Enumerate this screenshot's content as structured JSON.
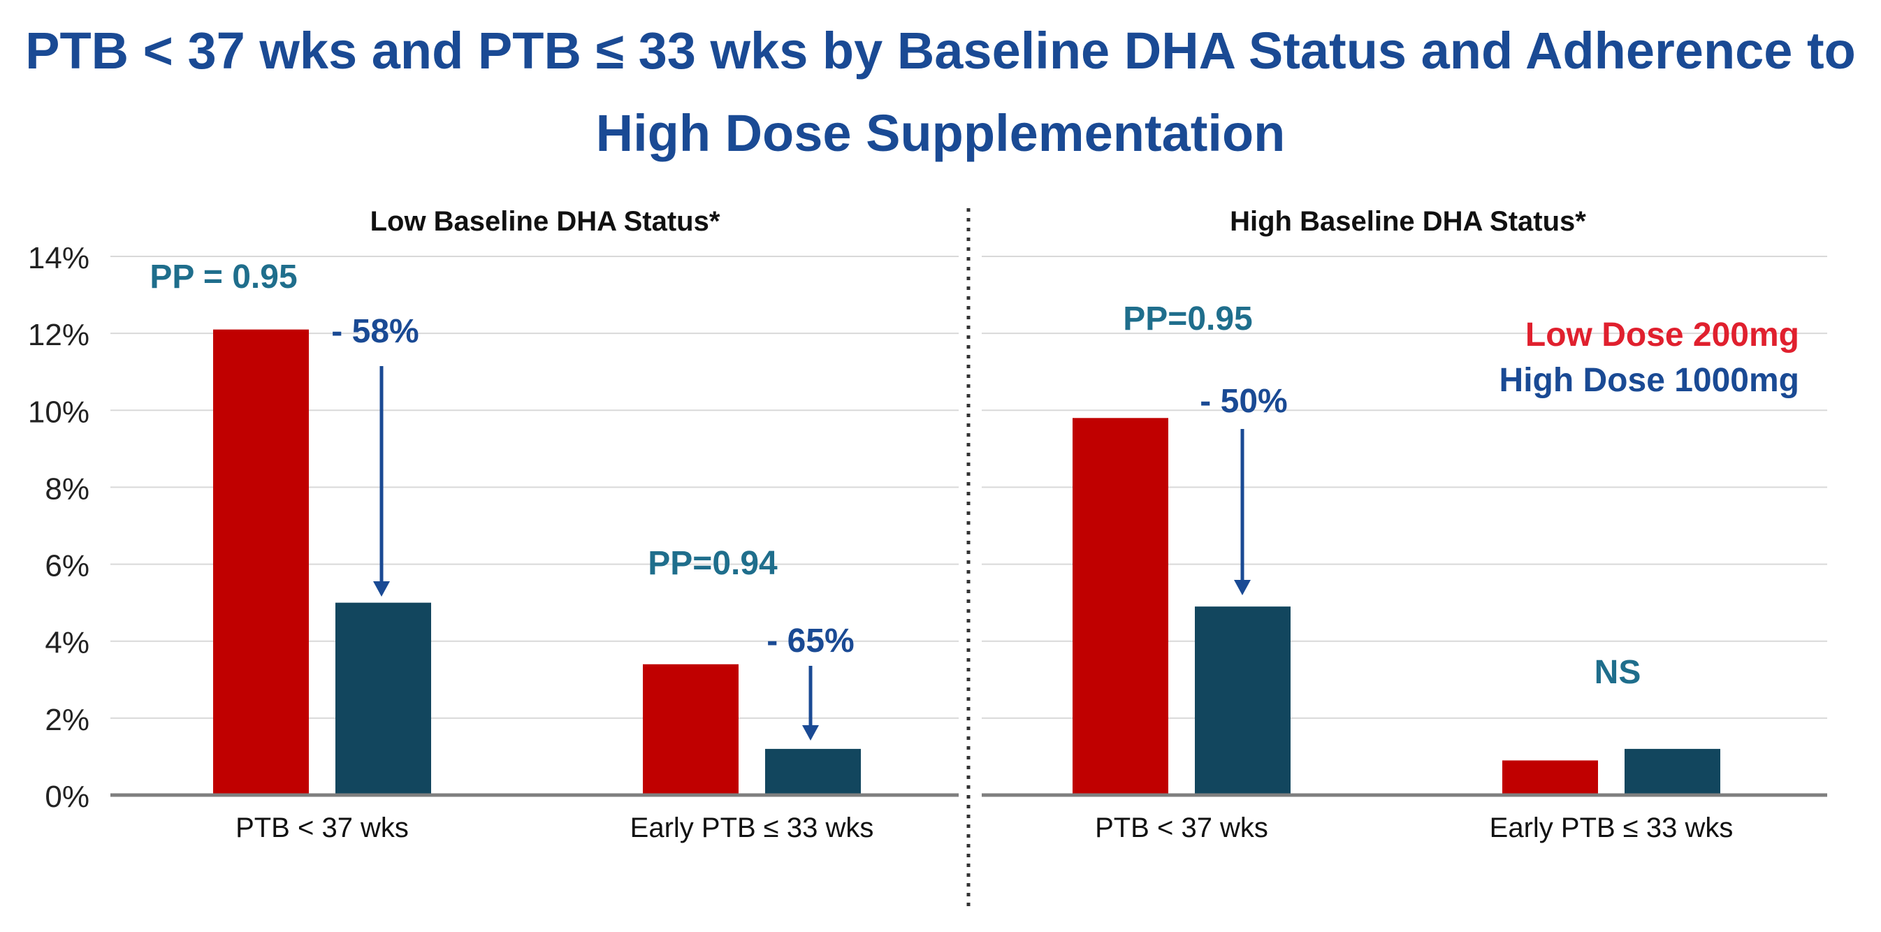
{
  "title_lines": [
    "PTB < 37 wks and PTB ≤ 33 wks by Baseline DHA Status and Adherence to",
    "High Dose Supplementation"
  ],
  "colors": {
    "low_dose": "#c00000",
    "high_dose": "#12465e",
    "title": "#1a4a94",
    "pp_text": "#1f6e8c",
    "arrow": "#1a4a94",
    "grid": "#d9d9d9",
    "axis": "#7f7f7f"
  },
  "chart_data": [
    {
      "type": "bar",
      "title": "Low Baseline DHA Status*",
      "categories": [
        "PTB < 37 wks",
        "Early PTB ≤ 33 wks"
      ],
      "series": [
        {
          "name": "Low Dose 200mg",
          "values": [
            12.1,
            3.4
          ]
        },
        {
          "name": "High Dose 1000mg",
          "values": [
            5.0,
            1.2
          ]
        }
      ],
      "ylim": [
        0,
        14
      ],
      "yticks": [
        "0%",
        "2%",
        "4%",
        "6%",
        "8%",
        "10%",
        "12%",
        "14%"
      ],
      "annotations": [
        {
          "category": 0,
          "pp": "PP = 0.95",
          "change": "- 58%"
        },
        {
          "category": 1,
          "pp": "PP=0.94",
          "change": "- 65%"
        }
      ]
    },
    {
      "type": "bar",
      "title": "High Baseline DHA Status*",
      "categories": [
        "PTB < 37 wks",
        "Early PTB ≤ 33 wks"
      ],
      "series": [
        {
          "name": "Low Dose 200mg",
          "values": [
            9.8,
            0.9
          ]
        },
        {
          "name": "High Dose 1000mg",
          "values": [
            4.9,
            1.2
          ]
        }
      ],
      "ylim": [
        0,
        14
      ],
      "annotations": [
        {
          "category": 0,
          "pp": "PP=0.95",
          "change": "- 50%"
        },
        {
          "category": 1,
          "pp": "NS",
          "change": ""
        }
      ],
      "legend": [
        "Low Dose 200mg",
        "High Dose 1000mg"
      ]
    }
  ]
}
